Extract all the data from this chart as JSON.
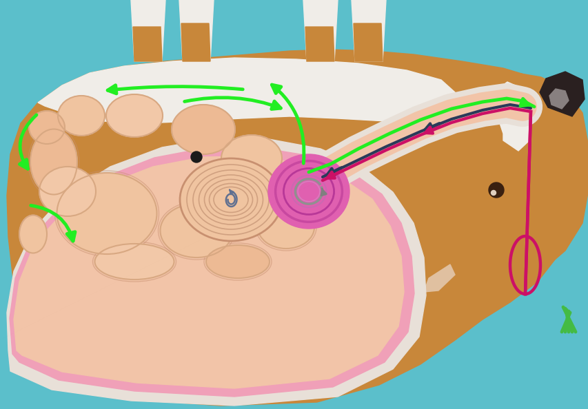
{
  "bg_color": "#5BBFCB",
  "cow_body_color": "#C8873A",
  "cow_white_color": "#F0EDE8",
  "stomach_outer_color": "#F2C4A8",
  "pink_bg_color": "#F0A0B8",
  "reticulum_color": "#E070B8",
  "green_arrow_color": "#22EE22",
  "pink_arrow_color": "#CC1066",
  "dark_arrow_color": "#2A3A5A",
  "gray_arrow_color": "#808080",
  "grass_color": "#44BB44",
  "cutaway_white": "#E8E0D8",
  "cutaway_pink": "#F0A0B8",
  "rumen_sac_colors": [
    "#F0C4A0",
    "#EDBA94",
    "#F2C8A8"
  ],
  "omasum_color": "#F0C4A0",
  "omasum_line_color": "#D0A080",
  "spiral_color": "#607090",
  "dot_color": "#1A1A1A",
  "esophagus_white": "#E8E0D8",
  "esophagus_pink": "#F2C4A8",
  "ret_rings": [
    "#D060A0",
    "#C050A0",
    "#CC70B0",
    "#D880B8"
  ],
  "eye_color": "#3A2010",
  "nose_color": "#2A2020"
}
